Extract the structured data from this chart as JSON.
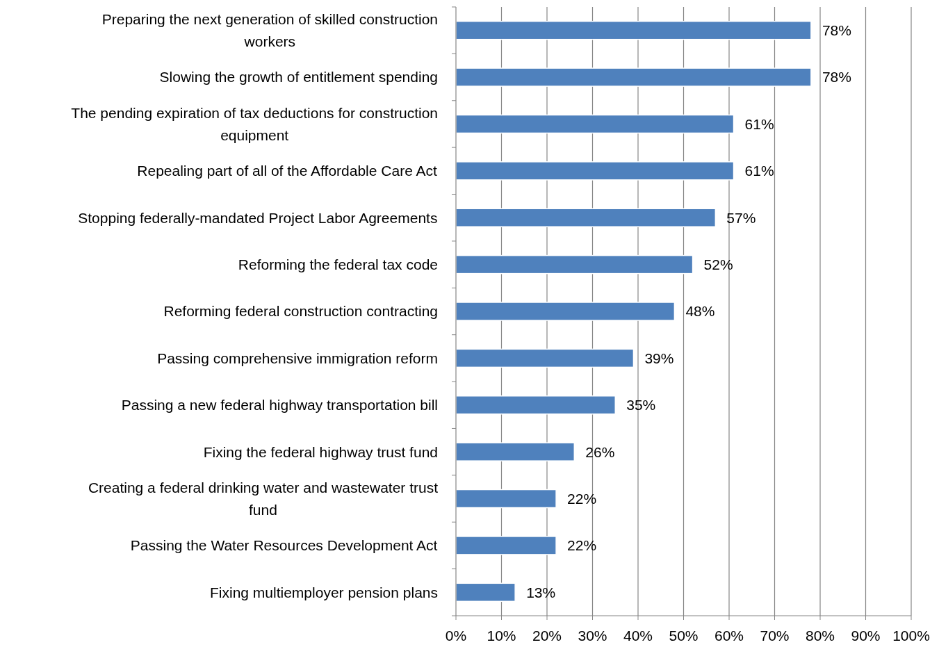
{
  "chart_data": {
    "type": "bar",
    "orientation": "horizontal",
    "categories": [
      "Preparing the next generation of skilled construction workers",
      "Slowing the growth of entitlement spending",
      "The pending expiration of tax deductions for construction equipment",
      "Repealing part of all of the Affordable Care Act",
      "Stopping federally-mandated Project Labor Agreements",
      "Reforming the federal tax code",
      "Reforming federal construction contracting",
      "Passing comprehensive immigration reform",
      "Passing a new federal highway transportation bill",
      "Fixing the federal highway trust fund",
      "Creating a federal drinking water and wastewater trust fund",
      "Passing the Water Resources Development Act",
      "Fixing multiemployer pension plans"
    ],
    "values": [
      78,
      78,
      61,
      61,
      57,
      52,
      48,
      39,
      35,
      26,
      22,
      22,
      13
    ],
    "value_labels": [
      "78%",
      "78%",
      "61%",
      "61%",
      "57%",
      "52%",
      "48%",
      "39%",
      "35%",
      "26%",
      "22%",
      "22%",
      "13%"
    ],
    "color": "#4f81bd",
    "xlim": [
      0,
      100
    ],
    "xticks": [
      {
        "value": 0,
        "label": "0%"
      },
      {
        "value": 10,
        "label": "10%"
      },
      {
        "value": 20,
        "label": "20%"
      },
      {
        "value": 30,
        "label": "30%"
      },
      {
        "value": 40,
        "label": "40%"
      },
      {
        "value": 50,
        "label": "50%"
      },
      {
        "value": 60,
        "label": "60%"
      },
      {
        "value": 70,
        "label": "70%"
      },
      {
        "value": 80,
        "label": "80%"
      },
      {
        "value": 90,
        "label": "90%"
      },
      {
        "value": 100,
        "label": "100%"
      }
    ],
    "grid": "x"
  }
}
